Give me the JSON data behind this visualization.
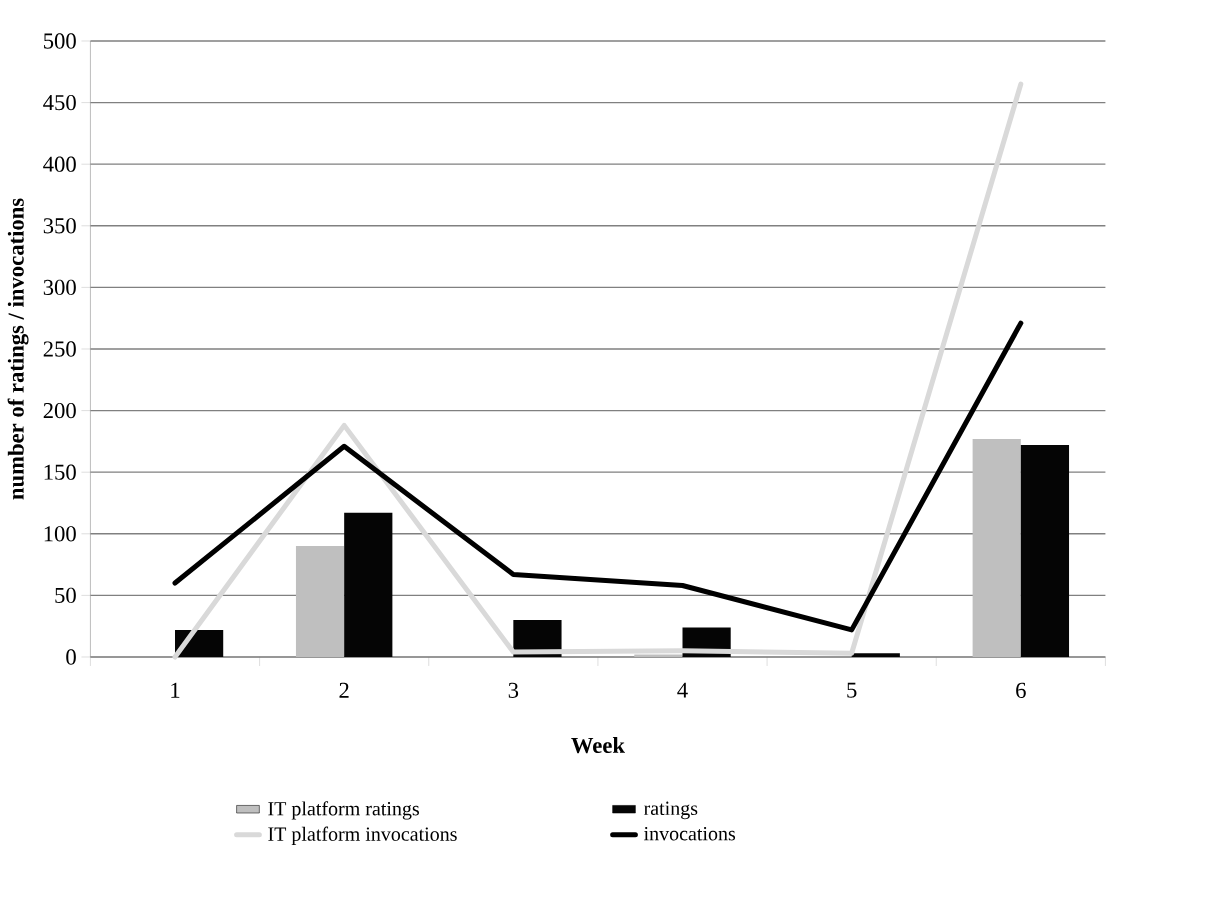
{
  "chart_data": {
    "type": "bar",
    "xlabel": "Week",
    "ylabel": "number of ratings / invocations",
    "categories": [
      "1",
      "2",
      "3",
      "4",
      "5",
      "6"
    ],
    "series": [
      {
        "name": "IT platform ratings",
        "color": "#bfbfbf",
        "values": [
          0,
          90,
          0,
          2,
          0,
          177
        ]
      },
      {
        "name": "ratings",
        "color": "#050505",
        "values": [
          22,
          117,
          30,
          24,
          3,
          172
        ]
      },
      {
        "name": "IT platform invocations",
        "type": "line",
        "color": "#d9d9d9",
        "values": [
          0,
          188,
          4,
          5,
          3,
          465
        ]
      },
      {
        "name": "invocations",
        "type": "line",
        "color": "#000000",
        "values": [
          60,
          171,
          67,
          58,
          22,
          271
        ]
      }
    ],
    "ylim": [
      0,
      500
    ],
    "yticks": [
      0,
      50,
      100,
      150,
      200,
      250,
      300,
      350,
      400,
      450,
      500
    ],
    "grid": "y",
    "legend": "bottom",
    "marker": "none",
    "line_style": "solid"
  }
}
